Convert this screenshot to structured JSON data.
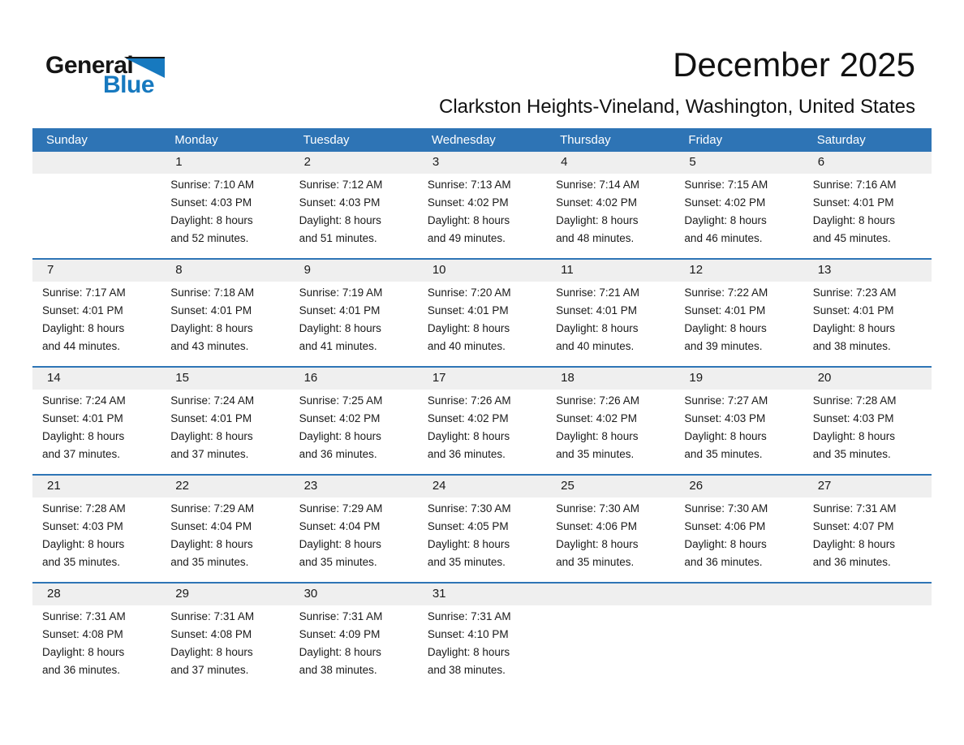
{
  "logo": {
    "general": "General",
    "blue": "Blue"
  },
  "header": {
    "title": "December 2025",
    "subtitle": "Clarkston Heights-Vineland, Washington, United States"
  },
  "colors": {
    "header_blue": "#2E74B5",
    "separator_blue": "#2E75B6",
    "band_gray": "#EFEFEF",
    "logo_blue": "#1779BF",
    "text": "#1A1A1A"
  },
  "calendar": {
    "day_headers": [
      "Sunday",
      "Monday",
      "Tuesday",
      "Wednesday",
      "Thursday",
      "Friday",
      "Saturday"
    ],
    "weeks": [
      {
        "days": [
          {
            "num": "",
            "lines": []
          },
          {
            "num": "1",
            "lines": [
              "Sunrise: 7:10 AM",
              "Sunset: 4:03 PM",
              "Daylight: 8 hours",
              "and 52 minutes."
            ]
          },
          {
            "num": "2",
            "lines": [
              "Sunrise: 7:12 AM",
              "Sunset: 4:03 PM",
              "Daylight: 8 hours",
              "and 51 minutes."
            ]
          },
          {
            "num": "3",
            "lines": [
              "Sunrise: 7:13 AM",
              "Sunset: 4:02 PM",
              "Daylight: 8 hours",
              "and 49 minutes."
            ]
          },
          {
            "num": "4",
            "lines": [
              "Sunrise: 7:14 AM",
              "Sunset: 4:02 PM",
              "Daylight: 8 hours",
              "and 48 minutes."
            ]
          },
          {
            "num": "5",
            "lines": [
              "Sunrise: 7:15 AM",
              "Sunset: 4:02 PM",
              "Daylight: 8 hours",
              "and 46 minutes."
            ]
          },
          {
            "num": "6",
            "lines": [
              "Sunrise: 7:16 AM",
              "Sunset: 4:01 PM",
              "Daylight: 8 hours",
              "and 45 minutes."
            ]
          }
        ]
      },
      {
        "days": [
          {
            "num": "7",
            "lines": [
              "Sunrise: 7:17 AM",
              "Sunset: 4:01 PM",
              "Daylight: 8 hours",
              "and 44 minutes."
            ]
          },
          {
            "num": "8",
            "lines": [
              "Sunrise: 7:18 AM",
              "Sunset: 4:01 PM",
              "Daylight: 8 hours",
              "and 43 minutes."
            ]
          },
          {
            "num": "9",
            "lines": [
              "Sunrise: 7:19 AM",
              "Sunset: 4:01 PM",
              "Daylight: 8 hours",
              "and 41 minutes."
            ]
          },
          {
            "num": "10",
            "lines": [
              "Sunrise: 7:20 AM",
              "Sunset: 4:01 PM",
              "Daylight: 8 hours",
              "and 40 minutes."
            ]
          },
          {
            "num": "11",
            "lines": [
              "Sunrise: 7:21 AM",
              "Sunset: 4:01 PM",
              "Daylight: 8 hours",
              "and 40 minutes."
            ]
          },
          {
            "num": "12",
            "lines": [
              "Sunrise: 7:22 AM",
              "Sunset: 4:01 PM",
              "Daylight: 8 hours",
              "and 39 minutes."
            ]
          },
          {
            "num": "13",
            "lines": [
              "Sunrise: 7:23 AM",
              "Sunset: 4:01 PM",
              "Daylight: 8 hours",
              "and 38 minutes."
            ]
          }
        ]
      },
      {
        "days": [
          {
            "num": "14",
            "lines": [
              "Sunrise: 7:24 AM",
              "Sunset: 4:01 PM",
              "Daylight: 8 hours",
              "and 37 minutes."
            ]
          },
          {
            "num": "15",
            "lines": [
              "Sunrise: 7:24 AM",
              "Sunset: 4:01 PM",
              "Daylight: 8 hours",
              "and 37 minutes."
            ]
          },
          {
            "num": "16",
            "lines": [
              "Sunrise: 7:25 AM",
              "Sunset: 4:02 PM",
              "Daylight: 8 hours",
              "and 36 minutes."
            ]
          },
          {
            "num": "17",
            "lines": [
              "Sunrise: 7:26 AM",
              "Sunset: 4:02 PM",
              "Daylight: 8 hours",
              "and 36 minutes."
            ]
          },
          {
            "num": "18",
            "lines": [
              "Sunrise: 7:26 AM",
              "Sunset: 4:02 PM",
              "Daylight: 8 hours",
              "and 35 minutes."
            ]
          },
          {
            "num": "19",
            "lines": [
              "Sunrise: 7:27 AM",
              "Sunset: 4:03 PM",
              "Daylight: 8 hours",
              "and 35 minutes."
            ]
          },
          {
            "num": "20",
            "lines": [
              "Sunrise: 7:28 AM",
              "Sunset: 4:03 PM",
              "Daylight: 8 hours",
              "and 35 minutes."
            ]
          }
        ]
      },
      {
        "days": [
          {
            "num": "21",
            "lines": [
              "Sunrise: 7:28 AM",
              "Sunset: 4:03 PM",
              "Daylight: 8 hours",
              "and 35 minutes."
            ]
          },
          {
            "num": "22",
            "lines": [
              "Sunrise: 7:29 AM",
              "Sunset: 4:04 PM",
              "Daylight: 8 hours",
              "and 35 minutes."
            ]
          },
          {
            "num": "23",
            "lines": [
              "Sunrise: 7:29 AM",
              "Sunset: 4:04 PM",
              "Daylight: 8 hours",
              "and 35 minutes."
            ]
          },
          {
            "num": "24",
            "lines": [
              "Sunrise: 7:30 AM",
              "Sunset: 4:05 PM",
              "Daylight: 8 hours",
              "and 35 minutes."
            ]
          },
          {
            "num": "25",
            "lines": [
              "Sunrise: 7:30 AM",
              "Sunset: 4:06 PM",
              "Daylight: 8 hours",
              "and 35 minutes."
            ]
          },
          {
            "num": "26",
            "lines": [
              "Sunrise: 7:30 AM",
              "Sunset: 4:06 PM",
              "Daylight: 8 hours",
              "and 36 minutes."
            ]
          },
          {
            "num": "27",
            "lines": [
              "Sunrise: 7:31 AM",
              "Sunset: 4:07 PM",
              "Daylight: 8 hours",
              "and 36 minutes."
            ]
          }
        ]
      },
      {
        "days": [
          {
            "num": "28",
            "lines": [
              "Sunrise: 7:31 AM",
              "Sunset: 4:08 PM",
              "Daylight: 8 hours",
              "and 36 minutes."
            ]
          },
          {
            "num": "29",
            "lines": [
              "Sunrise: 7:31 AM",
              "Sunset: 4:08 PM",
              "Daylight: 8 hours",
              "and 37 minutes."
            ]
          },
          {
            "num": "30",
            "lines": [
              "Sunrise: 7:31 AM",
              "Sunset: 4:09 PM",
              "Daylight: 8 hours",
              "and 38 minutes."
            ]
          },
          {
            "num": "31",
            "lines": [
              "Sunrise: 7:31 AM",
              "Sunset: 4:10 PM",
              "Daylight: 8 hours",
              "and 38 minutes."
            ]
          },
          {
            "num": "",
            "lines": []
          },
          {
            "num": "",
            "lines": []
          },
          {
            "num": "",
            "lines": []
          }
        ]
      }
    ]
  }
}
